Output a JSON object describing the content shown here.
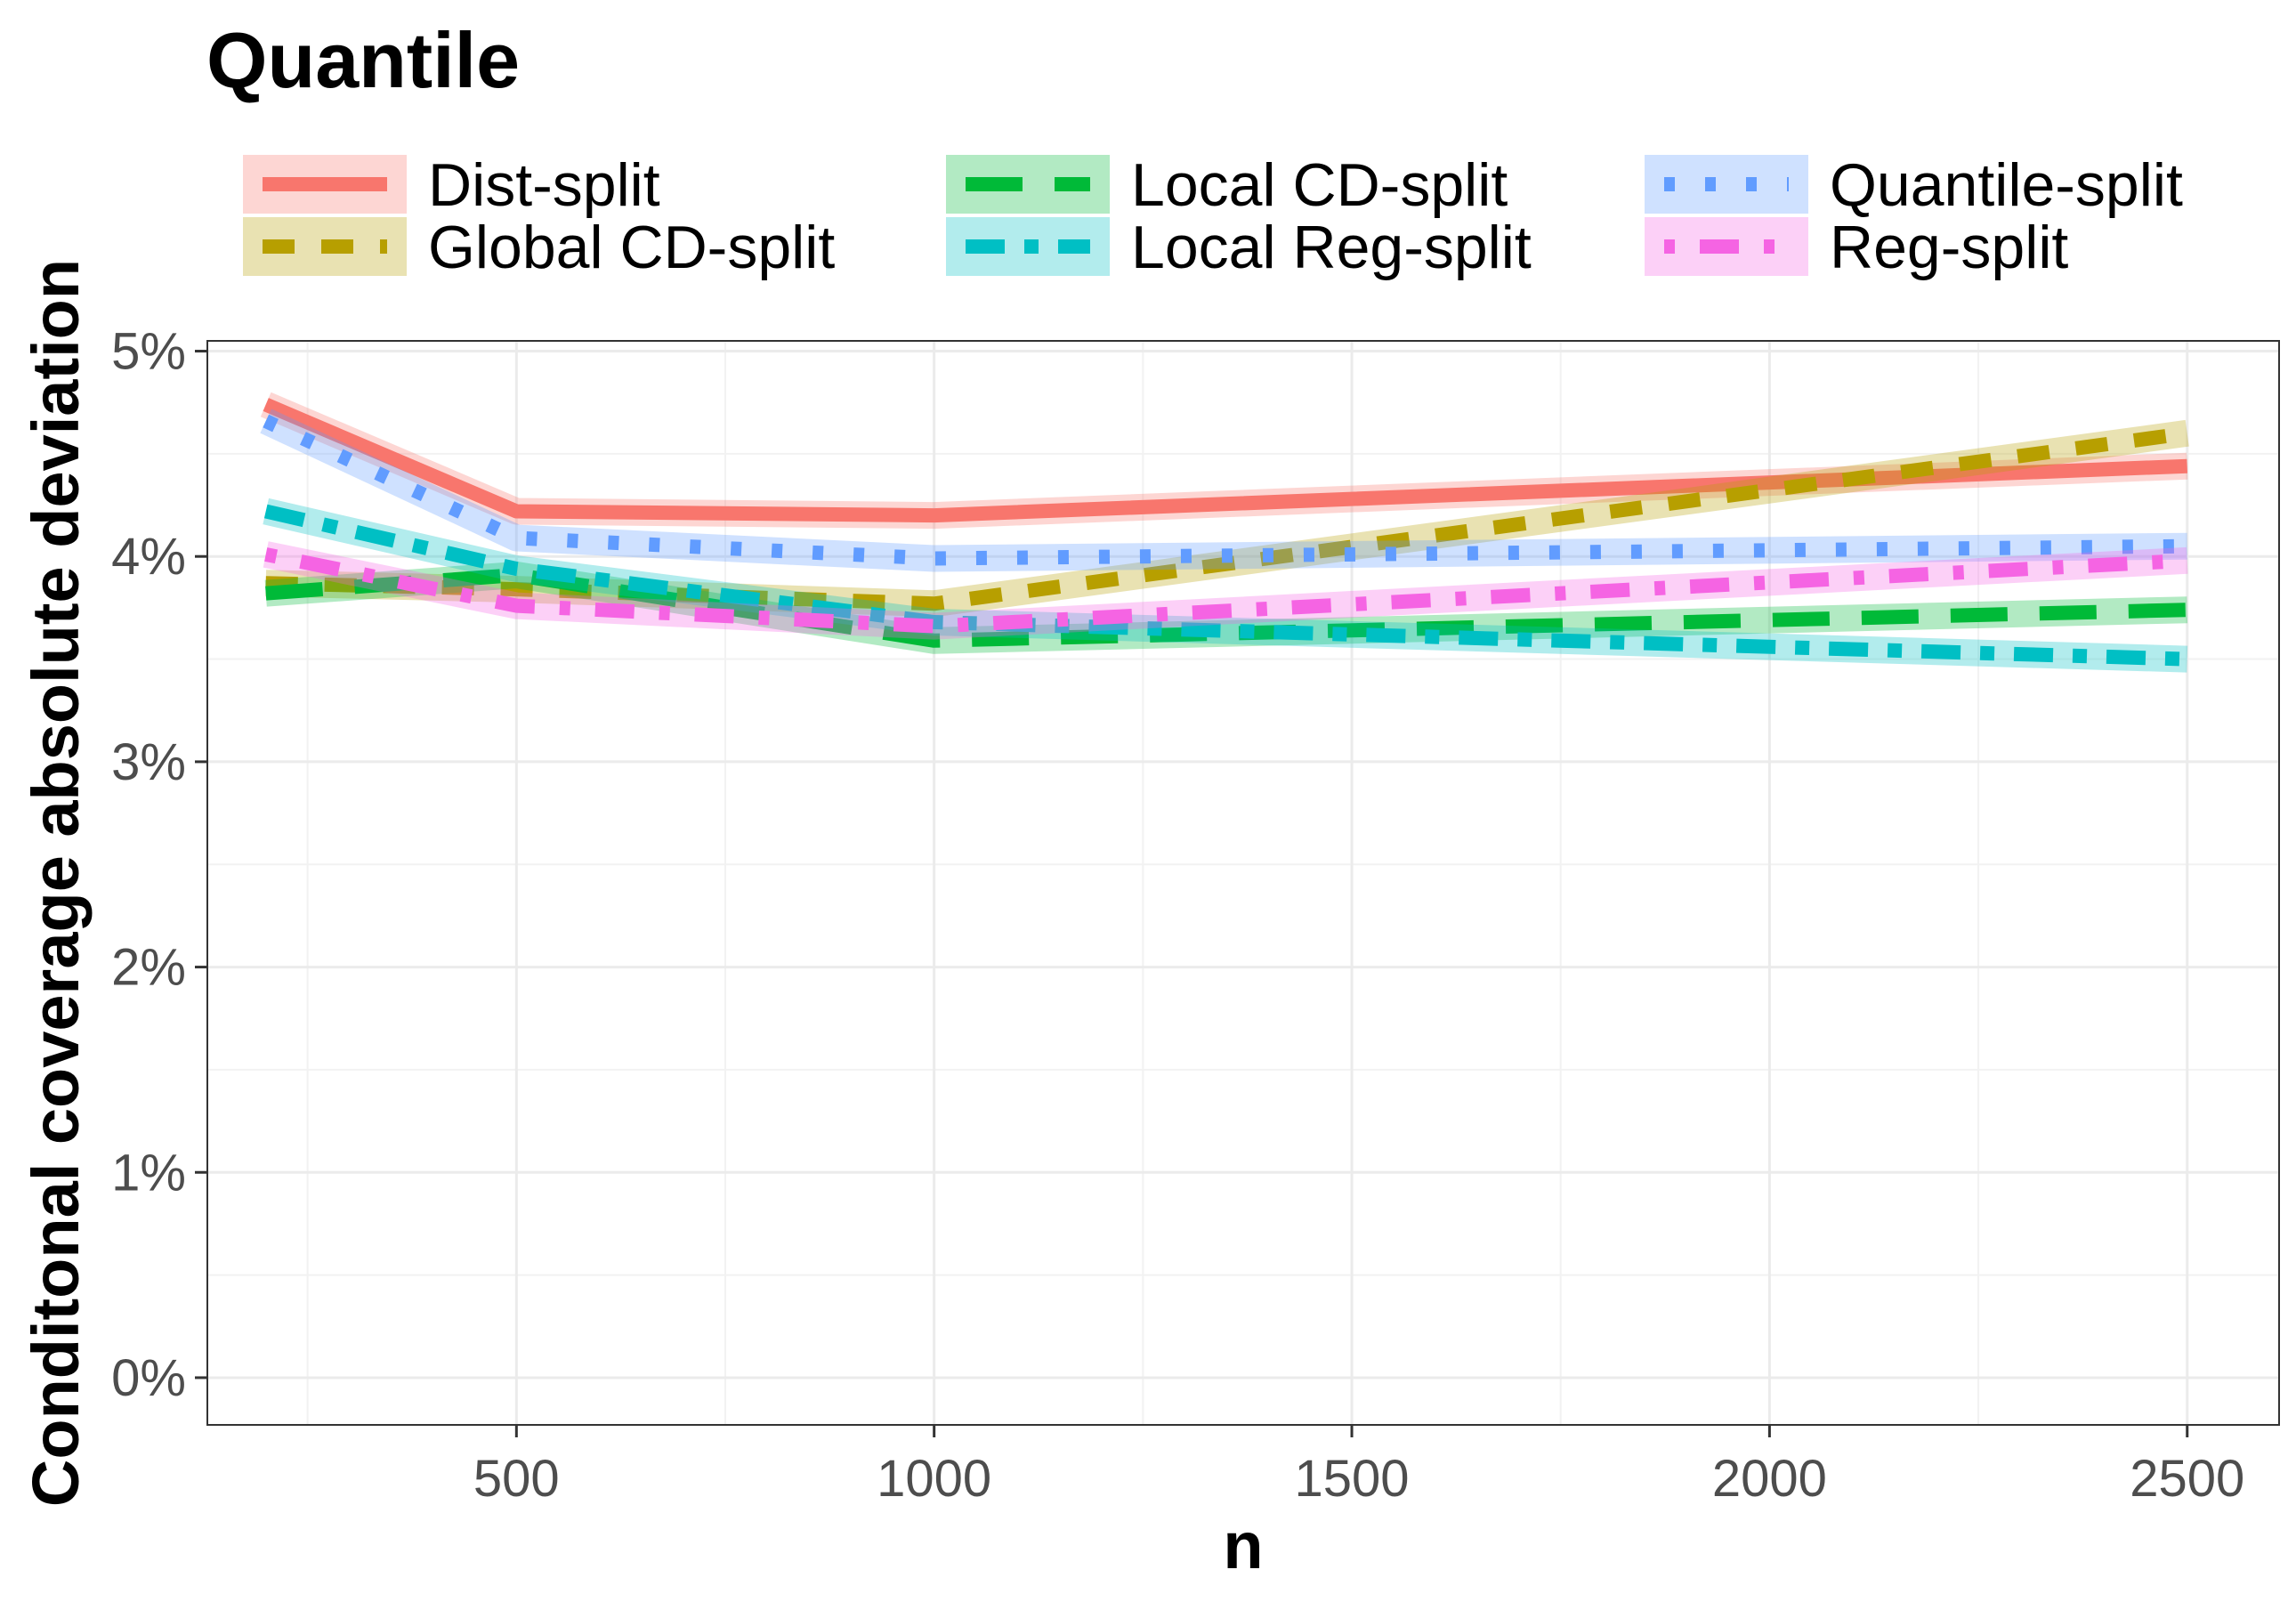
{
  "chart_data": {
    "type": "line",
    "title": "Quantile",
    "xlabel": "n",
    "ylabel": "Conditonal coverage absolute deviation",
    "x": [
      200,
      500,
      1000,
      2500
    ],
    "xlim": [
      130,
      2610
    ],
    "ylim": [
      -0.0023,
      0.0505
    ],
    "x_ticks": [
      500,
      1000,
      1500,
      2000,
      2500
    ],
    "x_tick_labels": [
      "500",
      "1000",
      "1500",
      "2000",
      "2500"
    ],
    "y_ticks": [
      0,
      0.01,
      0.02,
      0.03,
      0.04,
      0.05
    ],
    "y_tick_labels": [
      "0%",
      "1%",
      "2%",
      "3%",
      "4%",
      "5%"
    ],
    "grid": true,
    "legend_position": "top",
    "series": [
      {
        "name": "Dist-split",
        "color": "#F8766D",
        "dash": "solid",
        "values": [
          0.0474,
          0.0422,
          0.042,
          0.0444
        ]
      },
      {
        "name": "Global CD-split",
        "color": "#B79F00",
        "dash": "dashed",
        "values": [
          0.0387,
          0.0384,
          0.0377,
          0.046
        ]
      },
      {
        "name": "Local CD-split",
        "color": "#00BA38",
        "dash": "longdash",
        "values": [
          0.0382,
          0.0391,
          0.0359,
          0.0374
        ]
      },
      {
        "name": "Local Reg-split",
        "color": "#00BFC4",
        "dash": "twodash",
        "values": [
          0.0422,
          0.0394,
          0.0368,
          0.035
        ]
      },
      {
        "name": "Quantile-split",
        "color": "#619CFF",
        "dash": "dotted",
        "values": [
          0.0466,
          0.0409,
          0.0399,
          0.0405
        ]
      },
      {
        "name": "Reg-split",
        "color": "#F564E3",
        "dash": "dotdash",
        "values": [
          0.0401,
          0.0376,
          0.0366,
          0.0398
        ]
      }
    ]
  }
}
